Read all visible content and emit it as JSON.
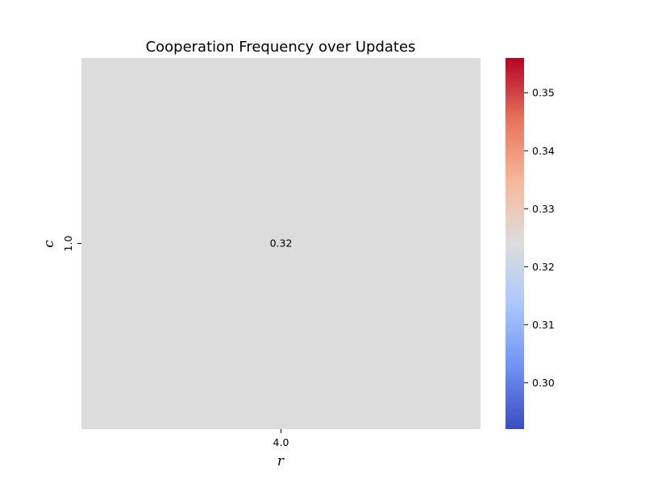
{
  "chart_data": {
    "type": "heatmap",
    "title": "Cooperation Frequency over Updates",
    "xlabel": "r",
    "ylabel": "c",
    "x_categories": [
      "4.0"
    ],
    "y_categories": [
      "1.0"
    ],
    "values": [
      [
        0.32
      ]
    ],
    "annotations": [
      [
        "0.32"
      ]
    ],
    "cell_color": "#dcdcdc",
    "colormap": "coolwarm",
    "colormap_stops": [
      "#3b4cc0",
      "#6f92f3",
      "#aac7fd",
      "#dcdddd",
      "#f7b89c",
      "#e7745b",
      "#b40426"
    ],
    "colorbar": {
      "vmin": 0.292,
      "vmax": 0.356,
      "ticks": [
        0.3,
        0.31,
        0.32,
        0.33,
        0.34,
        0.35
      ],
      "tick_labels": [
        "0.30",
        "0.31",
        "0.32",
        "0.33",
        "0.34",
        "0.35"
      ]
    }
  }
}
